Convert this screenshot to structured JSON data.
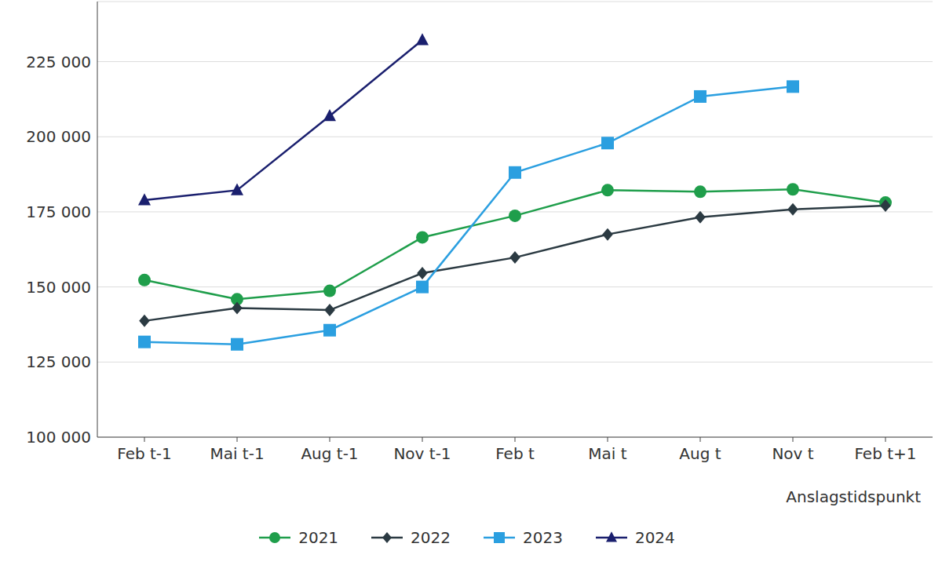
{
  "chart_data": {
    "type": "line",
    "x_label": "Anslagstidspunkt",
    "categories": [
      "Feb t-1",
      "Mai t-1",
      "Aug t-1",
      "Nov t-1",
      "Feb t",
      "Mai t",
      "Aug t",
      "Nov t",
      "Feb t+1"
    ],
    "series": [
      {
        "name": "2021",
        "color": "#1f9e4b",
        "marker": "circle",
        "values": [
          152300,
          145900,
          148700,
          166500,
          173700,
          182200,
          181700,
          182500,
          178100
        ]
      },
      {
        "name": "2022",
        "color": "#2b3a42",
        "marker": "diamond",
        "values": [
          138700,
          143000,
          142300,
          154600,
          159800,
          167500,
          173200,
          175800,
          177100
        ]
      },
      {
        "name": "2023",
        "color": "#2b9fe0",
        "marker": "square",
        "values": [
          131700,
          130900,
          135600,
          150000,
          188100,
          197900,
          213400,
          216700,
          null
        ]
      },
      {
        "name": "2024",
        "color": "#1a1f6e",
        "marker": "triangle",
        "values": [
          178900,
          182200,
          206900,
          232200,
          null,
          null,
          null,
          null,
          null
        ]
      }
    ],
    "ylim": [
      100000,
      245000
    ],
    "yticks": [
      {
        "value": 100000,
        "label": "100 000"
      },
      {
        "value": 125000,
        "label": "125 000"
      },
      {
        "value": 150000,
        "label": "150 000"
      },
      {
        "value": 175000,
        "label": "175 000"
      },
      {
        "value": 200000,
        "label": "200 000"
      },
      {
        "value": 225000,
        "label": "225 000"
      }
    ],
    "grid": true,
    "legend": "bottom"
  }
}
